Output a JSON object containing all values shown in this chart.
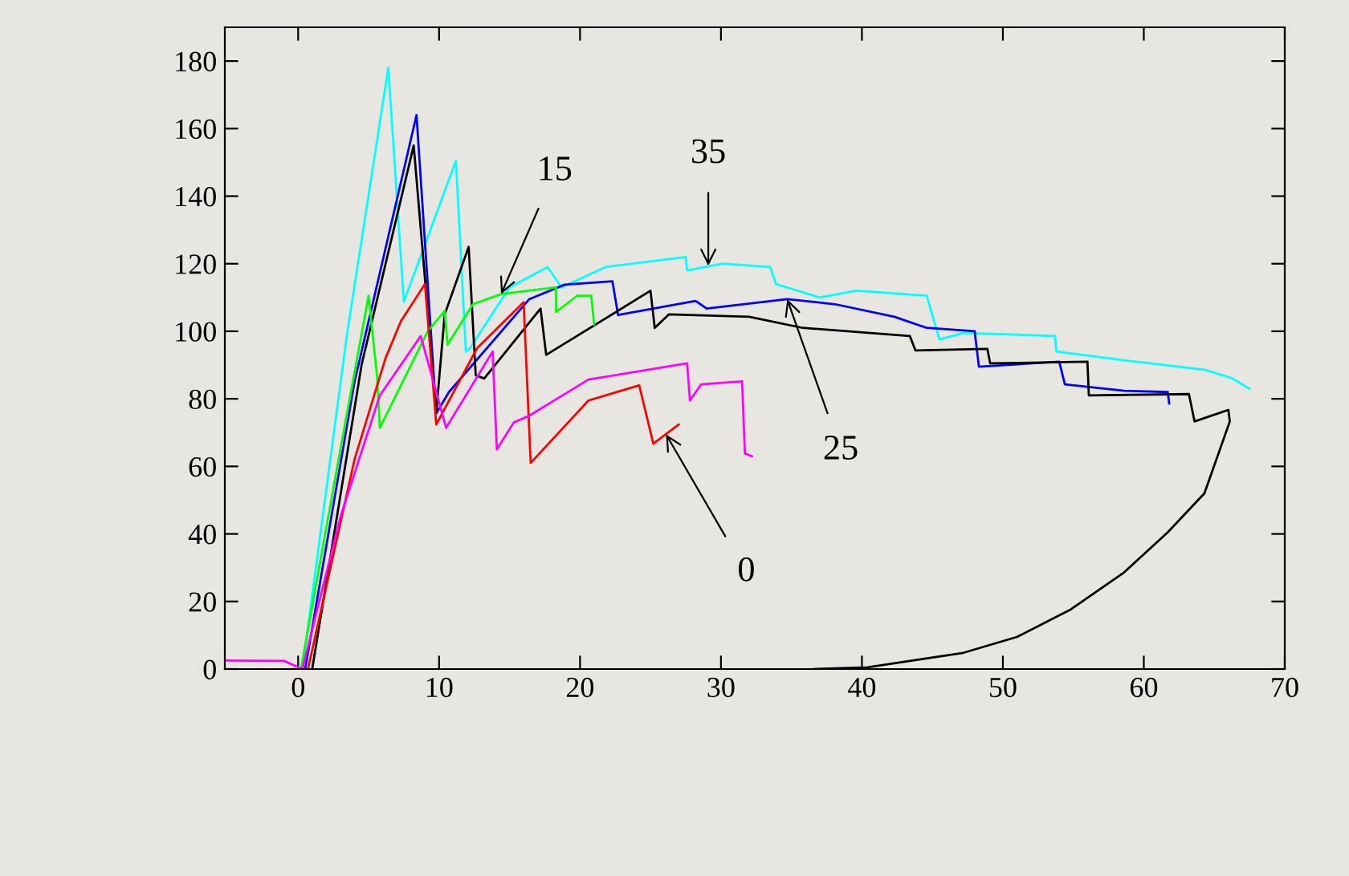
{
  "chart_data": {
    "type": "line",
    "xlim": [
      -5.2,
      70
    ],
    "ylim": [
      0,
      190
    ],
    "xticks": [
      0,
      10,
      20,
      30,
      40,
      50,
      60,
      70
    ],
    "yticks": [
      0,
      20,
      40,
      60,
      80,
      100,
      120,
      140,
      160,
      180
    ],
    "grid": false,
    "legend": false,
    "marker": "none",
    "line_style": "solid",
    "series": [
      {
        "color": "#00ffff",
        "x": [
          0.3,
          3.5,
          6.4,
          7.5,
          11.2,
          11.9,
          12.2,
          15,
          17.7,
          18.7,
          21.8,
          27.5,
          27.6,
          30.1,
          33.5,
          33.9,
          37,
          39.6,
          44.6,
          45.5,
          47.2,
          53.7,
          53.8,
          58.6,
          64.3,
          66.2,
          67.5
        ],
        "values": [
          0,
          100,
          178,
          108.7,
          150.5,
          94,
          95,
          113,
          119,
          113,
          119,
          122,
          118,
          120,
          119,
          114,
          110,
          112,
          110.5,
          97.6,
          99.5,
          98.6,
          94,
          91.4,
          88.6,
          86.2,
          83
        ]
      },
      {
        "color": "#0000ff",
        "x": [
          0.5,
          4,
          8.4,
          9.8,
          10.7,
          16.4,
          18.9,
          22.3,
          22.7,
          28.2,
          29,
          34.7,
          38.1,
          42.3,
          44.6,
          48,
          48.3,
          54,
          54.4,
          58.6,
          61.7,
          61.8
        ],
        "values": [
          0,
          85,
          164,
          75.7,
          82,
          109.5,
          113.8,
          114.8,
          104.8,
          109,
          106.7,
          109.5,
          108,
          104.3,
          101,
          100,
          89.5,
          91,
          84.3,
          82.4,
          82,
          78.6
        ]
      },
      {
        "color": "#000000",
        "x": [
          1,
          4.5,
          8.2,
          9.8,
          10.4,
          12.1,
          12.6,
          13.2,
          17.2,
          17.6,
          25,
          25.3,
          26.3,
          32,
          35.8,
          43.4,
          43.8,
          48.9,
          49.1,
          56,
          56.1,
          63.2,
          63.6,
          66,
          66.1,
          64.3,
          61.7,
          58.6,
          54.8,
          51,
          47.2,
          43.4,
          40.4,
          36.6
        ],
        "values": [
          0,
          90,
          155,
          76,
          105,
          125,
          87,
          86,
          106.7,
          93,
          112,
          101,
          105,
          104.3,
          101,
          98.6,
          94.3,
          94.8,
          90.5,
          91,
          81,
          81.4,
          73.3,
          76.7,
          73.3,
          52,
          40.5,
          28.6,
          17.6,
          9.5,
          4.8,
          2.4,
          0.5,
          0
        ]
      },
      {
        "color": "#00ff00",
        "x": [
          0.2,
          3,
          5,
          5.6,
          5.8,
          9.2,
          10.4,
          10.6,
          12.4,
          14.4,
          18.3,
          18.3,
          19.8,
          20.8,
          21
        ],
        "values": [
          0,
          65,
          110.5,
          86.7,
          71.4,
          100,
          106,
          96,
          108,
          111,
          113,
          105.7,
          110.5,
          110.5,
          102
        ]
      },
      {
        "color": "#ff0000",
        "x": [
          0.7,
          4,
          6.2,
          7.3,
          9,
          9.8,
          12.7,
          16,
          16.5,
          20.6,
          24.2,
          25.2,
          27
        ],
        "values": [
          0,
          62,
          92,
          103,
          114,
          72.4,
          95,
          108.6,
          61,
          79.5,
          84,
          66.7,
          72.4
        ]
      },
      {
        "color": "#ff00ff",
        "x": [
          -5.2,
          -1,
          0.3,
          3,
          5.8,
          8.7,
          10.5,
          13.8,
          14.1,
          15.3,
          16.4,
          20.6,
          27.6,
          27.8,
          28.6,
          31.5,
          31.7,
          32.2
        ],
        "values": [
          2.5,
          2.4,
          0,
          45,
          81,
          98.6,
          71.4,
          94,
          65,
          73,
          75,
          85.7,
          90.5,
          79.5,
          84.3,
          85.2,
          63.8,
          63
        ]
      }
    ],
    "annotations": [
      {
        "text": "35",
        "x": 29.1,
        "y": 119.4
      },
      {
        "text": "15",
        "x": 14.4,
        "y": 111
      },
      {
        "text": "25",
        "x": 34.7,
        "y": 109.5
      },
      {
        "text": "0",
        "x": 26.1,
        "y": 69.5
      }
    ]
  }
}
